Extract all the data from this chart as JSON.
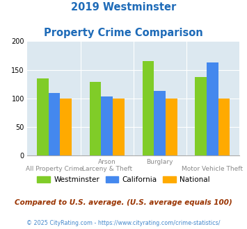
{
  "title_line1": "2019 Westminster",
  "title_line2": "Property Crime Comparison",
  "title_color": "#1e6bb8",
  "x_labels_top": [
    "",
    "Arson",
    "Burglary",
    ""
  ],
  "x_labels_bottom": [
    "All Property Crime",
    "Larceny & Theft",
    "",
    "Motor Vehicle Theft"
  ],
  "westminster": [
    135,
    129,
    165,
    138
  ],
  "california": [
    110,
    103,
    113,
    163
  ],
  "national": [
    100,
    100,
    100,
    100
  ],
  "westminster_color": "#80cc28",
  "california_color": "#4488ee",
  "national_color": "#ffaa00",
  "ylim": [
    0,
    200
  ],
  "yticks": [
    0,
    50,
    100,
    150,
    200
  ],
  "bar_width": 0.22,
  "chart_bg": "#dce8f0",
  "legend_labels": [
    "Westminster",
    "California",
    "National"
  ],
  "footnote1": "Compared to U.S. average. (U.S. average equals 100)",
  "footnote2": "© 2025 CityRating.com - https://www.cityrating.com/crime-statistics/",
  "footnote1_color": "#993300",
  "footnote2_color": "#4488cc",
  "grid_color": "white",
  "spine_color": "#aaaaaa"
}
